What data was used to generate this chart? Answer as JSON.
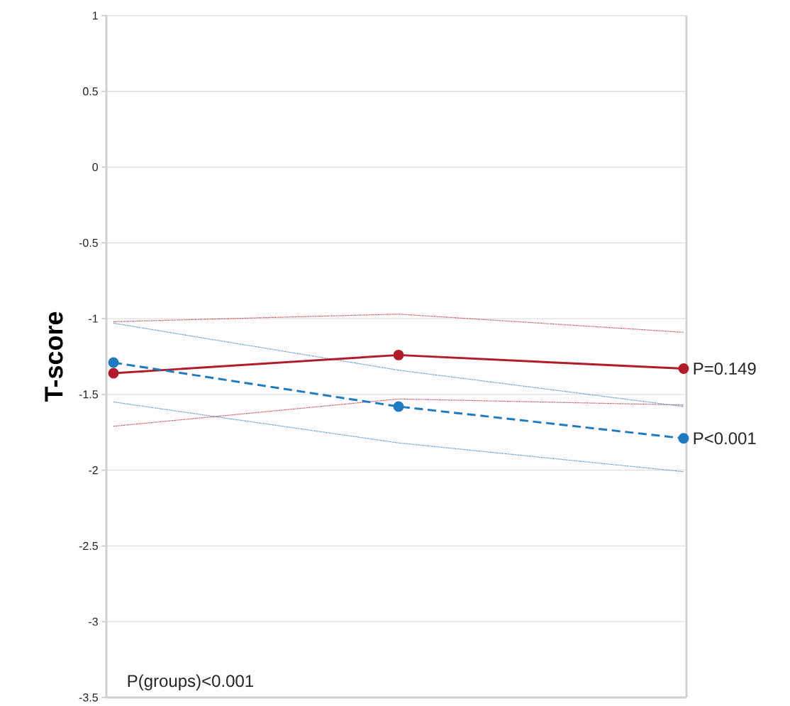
{
  "chart_data": {
    "type": "line",
    "ylabel": "T-score",
    "categories": [
      null,
      null,
      null
    ],
    "series": [
      {
        "color": "#b01c2a",
        "values": [
          -1.02,
          -0.97,
          -1.09
        ],
        "line_style": "dotted",
        "marker": "none"
      },
      {
        "color": "#b01c2a",
        "values": [
          -1.71,
          -1.53,
          -1.57
        ],
        "line_style": "dotted",
        "marker": "none"
      },
      {
        "color": "#1f7bbf",
        "values": [
          -1.03,
          -1.34,
          -1.58
        ],
        "line_style": "dotted",
        "marker": "none"
      },
      {
        "color": "#1f7bbf",
        "values": [
          -1.55,
          -1.82,
          -2.01
        ],
        "line_style": "dotted",
        "marker": "none"
      },
      {
        "name": "P=0.149",
        "color": "#b01c2a",
        "values": [
          -1.36,
          -1.24,
          -1.33
        ],
        "line_style": "solid",
        "marker": "circle"
      },
      {
        "name": "P<0.001",
        "color": "#1f7bbf",
        "values": [
          -1.29,
          -1.58,
          -1.79
        ],
        "line_style": "dashed",
        "marker": "circle"
      }
    ],
    "ylim": [
      -3.5,
      1
    ],
    "yticks": [
      -3.5,
      -3,
      -2.5,
      -2,
      -1.5,
      -1,
      -0.5,
      0,
      0.5,
      1
    ],
    "grid": "y",
    "annotations": [
      "P(groups)<0.001"
    ]
  }
}
